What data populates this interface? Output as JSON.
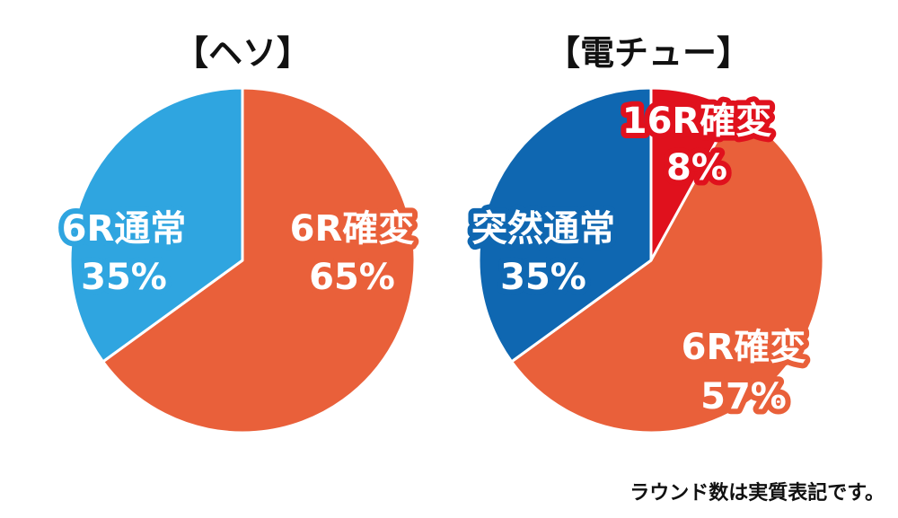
{
  "chart_data": [
    {
      "type": "pie",
      "title": "【ヘソ】",
      "slices": [
        {
          "label": "6R確変",
          "value": 65,
          "value_label": "65%",
          "color": "#e9603a"
        },
        {
          "label": "6R通常",
          "value": 35,
          "value_label": "35%",
          "color": "#2fa5e0"
        }
      ]
    },
    {
      "type": "pie",
      "title": "【電チュー】",
      "slices": [
        {
          "label": "16R確変",
          "value": 8,
          "value_label": "8%",
          "color": "#e0111d"
        },
        {
          "label": "6R確変",
          "value": 57,
          "value_label": "57%",
          "color": "#e9603a"
        },
        {
          "label": "突然通常",
          "value": 35,
          "value_label": "35%",
          "color": "#0f67b1"
        }
      ]
    }
  ],
  "footnote": "ラウンド数は実質表記です。"
}
